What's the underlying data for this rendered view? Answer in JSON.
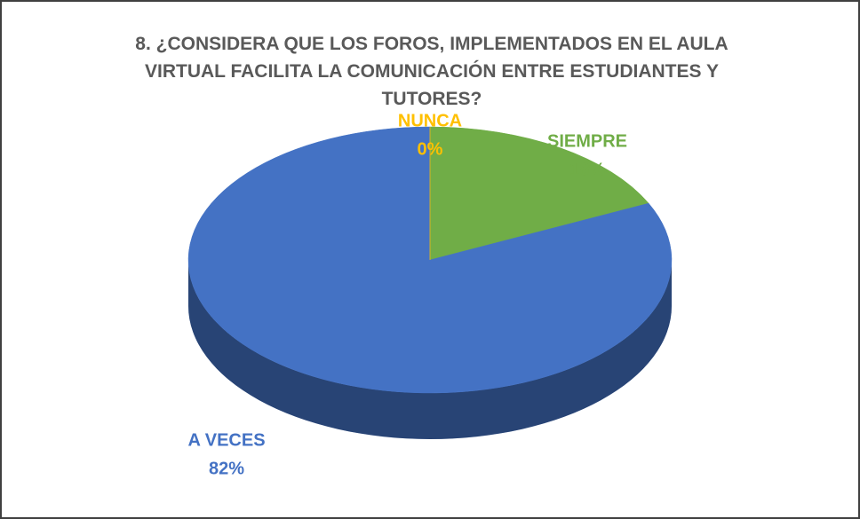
{
  "chart_data": {
    "type": "pie",
    "title": "8. ¿CONSIDERA QUE LOS FOROS, IMPLEMENTADOS EN EL AULA VIRTUAL FACILITA LA COMUNICACIÓN ENTRE ESTUDIANTES Y TUTORES?",
    "categories": [
      "SIEMPRE",
      "A VECES",
      "NUNCA"
    ],
    "values": [
      18,
      82,
      0
    ],
    "value_labels": [
      "18%",
      "82%",
      "0%"
    ],
    "colors": [
      "#70ad47",
      "#4472c4",
      "#ffc000"
    ]
  }
}
